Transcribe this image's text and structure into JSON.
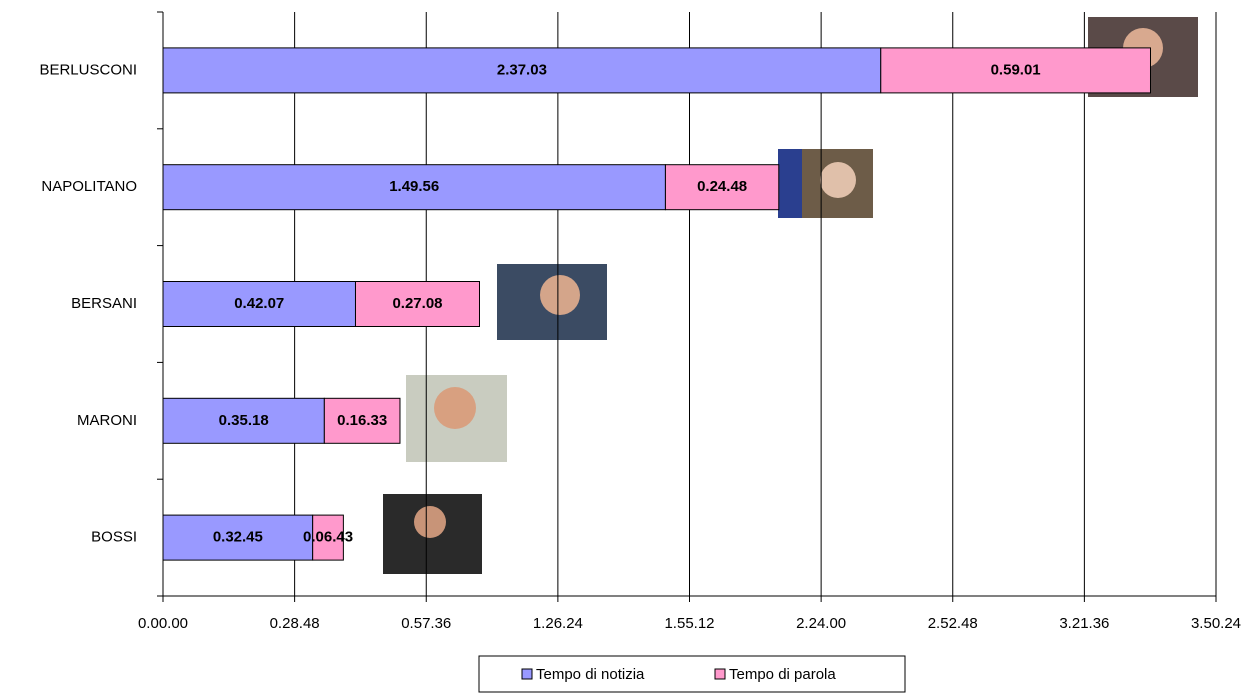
{
  "chart_data": {
    "type": "stacked-bar-horizontal",
    "categories": [
      "BERLUSCONI",
      "NAPOLITANO",
      "BERSANI",
      "MARONI",
      "BOSSI"
    ],
    "series": [
      {
        "name": "Tempo di notizia",
        "color": "#9999ff",
        "values": [
          9423,
          6596,
          2527,
          2118,
          1965
        ],
        "value_labels": [
          "2.37.03",
          "1.49.56",
          "0.42.07",
          "0.35.18",
          "0.32.45"
        ]
      },
      {
        "name": "Tempo di parola",
        "color": "#ff99cc",
        "values": [
          3541,
          1488,
          1628,
          993,
          403
        ],
        "value_labels": [
          "0.59.01",
          "0.24.48",
          "0.27.08",
          "0.16.33",
          "0.06.43"
        ]
      }
    ],
    "xlim": [
      0,
      13824
    ],
    "xticks": [
      {
        "value": 0,
        "label": "0.00.00"
      },
      {
        "value": 1728,
        "label": "0.28.48"
      },
      {
        "value": 3456,
        "label": "0.57.36"
      },
      {
        "value": 5184,
        "label": "1.26.24"
      },
      {
        "value": 6912,
        "label": "1.55.12"
      },
      {
        "value": 8640,
        "label": "2.24.00"
      },
      {
        "value": 10368,
        "label": "2.52.48"
      },
      {
        "value": 12096,
        "label": "3.21.36"
      },
      {
        "value": 13824,
        "label": "3.50.24"
      }
    ],
    "grid": true,
    "legend": "bottom"
  }
}
